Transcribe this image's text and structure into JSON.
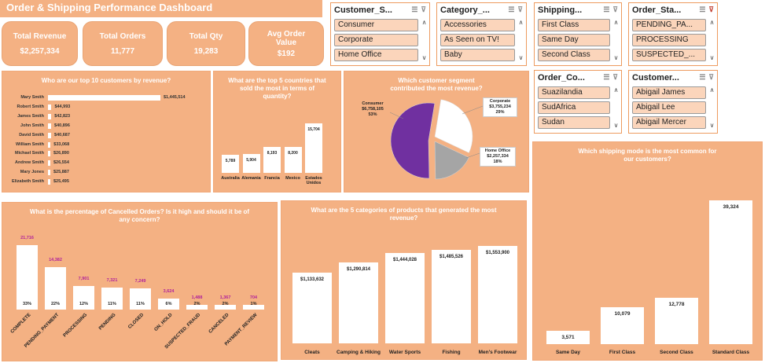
{
  "dashboard": {
    "title": "Order & Shipping Performance Dashboard"
  },
  "kpis": [
    {
      "label": "Total Revenue",
      "value": "$2,257,334"
    },
    {
      "label": "Total Orders",
      "value": "11,777"
    },
    {
      "label": "Total Qty",
      "value": "19,283"
    },
    {
      "label": "Avg Order Value",
      "value": "$192"
    }
  ],
  "slicers": {
    "customer_segment": {
      "title": "Customer_S...",
      "items": [
        "Consumer",
        "Corporate",
        "Home Office"
      ]
    },
    "category": {
      "title": "Category_...",
      "items": [
        "Accessories",
        "As Seen on TV!",
        "Baby"
      ]
    },
    "shipping": {
      "title": "Shipping...",
      "items": [
        "First Class",
        "Same Day",
        "Second Class"
      ]
    },
    "order_status": {
      "title": "Order_Sta...",
      "items": [
        "PENDING_PA...",
        "PROCESSING",
        "SUSPECTED_..."
      ]
    },
    "order_country": {
      "title": "Order_Co...",
      "items": [
        "Suazilandia",
        "SudAfrica",
        "Sudan"
      ]
    },
    "customer": {
      "title": "Customer...",
      "items": [
        "Abigail James",
        "Abigail Lee",
        "Abigail Mercer"
      ]
    }
  },
  "charts": {
    "top_customers": {
      "title": "Who are our top 10 customers by revenue?",
      "names": [
        "Mary Smith",
        "Robert Smith",
        "James Smith",
        "John Smith",
        "David Smith",
        "William Smith",
        "Michael Smith",
        "Andrew Smith",
        "Mary Jones",
        "Elizabeth Smith"
      ],
      "labels": [
        "$1,445,514",
        "$44,993",
        "$42,823",
        "$40,896",
        "$40,687",
        "$33,068",
        "$26,890",
        "$26,554",
        "$25,887",
        "$25,495"
      ]
    },
    "top_countries": {
      "title": "What are the top 5 countries that sold the most in terms of quantity?",
      "categories": [
        "Australia",
        "Alemania",
        "Francia",
        "Mexico",
        "Estados Unidos"
      ],
      "labels": [
        "5,789",
        "5,904",
        "8,193",
        "8,200",
        "15,704"
      ]
    },
    "segment_pie": {
      "title": "Which customer segment contributed the most revenue?",
      "slices": [
        {
          "name": "Consumer",
          "amount": "$6,758,105",
          "pct": "53%"
        },
        {
          "name": "Corporate",
          "amount": "$3,755,234",
          "pct": "29%"
        },
        {
          "name": "Home Office",
          "amount": "$2,257,334",
          "pct": "18%"
        }
      ]
    },
    "cancelled_orders": {
      "title": "What is the percentage of Cancelled Orders? Is it high and should it be of any concern?",
      "categories": [
        "COMPLETE",
        "PENDING_PAYMENT",
        "PROCESSING",
        "PENDING",
        "CLOSED",
        "ON_HOLD",
        "SUSPECTED_FRAUD",
        "CANCELED",
        "PAYMENT_REVIEW"
      ],
      "labels": [
        "21,716",
        "14,382",
        "7,901",
        "7,321",
        "7,249",
        "3,624",
        "1,488",
        "1,367",
        "704"
      ],
      "pcts": [
        "33%",
        "22%",
        "12%",
        "11%",
        "11%",
        "6%",
        "2%",
        "2%",
        "1%"
      ]
    },
    "top_categories": {
      "title": "What are the 5 categories of products that generated the most revenue?",
      "categories": [
        "Cleats",
        "Camping & Hiking",
        "Water Sports",
        "Fishing",
        "Men's Footwear"
      ],
      "labels": [
        "$1,133,632",
        "$1,290,814",
        "$1,444,028",
        "$1,485,526",
        "$1,553,900"
      ]
    },
    "shipping_mode": {
      "title": "Which shipping mode is the most common for our customers?",
      "categories": [
        "Same Day",
        "First Class",
        "Second Class",
        "Standard Class"
      ],
      "labels": [
        "3,571",
        "10,079",
        "12,778",
        "39,324"
      ]
    }
  },
  "chart_data": [
    {
      "type": "bar",
      "title": "Who are our top 10 customers by revenue?",
      "categories": [
        "Mary Smith",
        "Robert Smith",
        "James Smith",
        "John Smith",
        "David Smith",
        "William Smith",
        "Michael Smith",
        "Andrew Smith",
        "Mary Jones",
        "Elizabeth Smith"
      ],
      "values": [
        1445514,
        44993,
        42823,
        40896,
        40687,
        33068,
        26890,
        26554,
        25887,
        25495
      ],
      "orientation": "horizontal"
    },
    {
      "type": "bar",
      "title": "What are the top 5 countries that sold the most in terms of quantity?",
      "categories": [
        "Australia",
        "Alemania",
        "Francia",
        "Mexico",
        "Estados Unidos"
      ],
      "values": [
        5789,
        5904,
        8193,
        8200,
        15704
      ]
    },
    {
      "type": "pie",
      "title": "Which customer segment contributed the most revenue?",
      "categories": [
        "Consumer",
        "Corporate",
        "Home Office"
      ],
      "values": [
        6758105,
        3755234,
        2257334
      ],
      "colors": [
        "#7030a0",
        "#ffffff",
        "#a5a5a5"
      ]
    },
    {
      "type": "bar",
      "title": "What is the percentage of Cancelled Orders? Is it high and should it be of any concern?",
      "categories": [
        "COMPLETE",
        "PENDING_PAYMENT",
        "PROCESSING",
        "PENDING",
        "CLOSED",
        "ON_HOLD",
        "SUSPECTED_FRAUD",
        "CANCELED",
        "PAYMENT_REVIEW"
      ],
      "values": [
        21716,
        14382,
        7901,
        7321,
        7249,
        3624,
        1488,
        1367,
        704
      ],
      "percentages": [
        33,
        22,
        12,
        11,
        11,
        6,
        2,
        2,
        1
      ]
    },
    {
      "type": "bar",
      "title": "What are the 5 categories of products that generated the most revenue?",
      "categories": [
        "Cleats",
        "Camping & Hiking",
        "Water Sports",
        "Fishing",
        "Men's Footwear"
      ],
      "values": [
        1133632,
        1290814,
        1444028,
        1485526,
        1553900
      ]
    },
    {
      "type": "bar",
      "title": "Which shipping mode is the most common for our customers?",
      "categories": [
        "Same Day",
        "First Class",
        "Second Class",
        "Standard Class"
      ],
      "values": [
        3571,
        10079,
        12778,
        39324
      ]
    }
  ]
}
